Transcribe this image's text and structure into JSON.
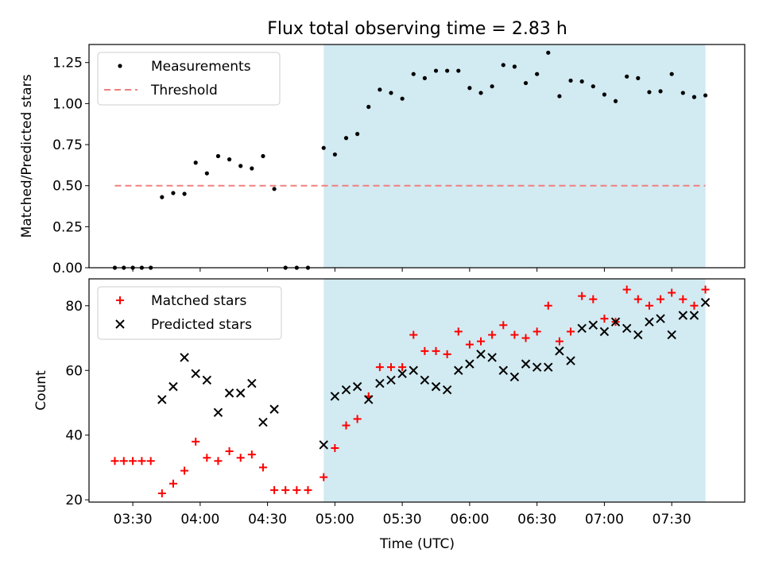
{
  "title": "Flux total observing time = 2.83 h",
  "xlabel": "Time (UTC)",
  "x_ticks": [
    {
      "t": 210,
      "label": "03:30"
    },
    {
      "t": 240,
      "label": "04:00"
    },
    {
      "t": 270,
      "label": "04:30"
    },
    {
      "t": 300,
      "label": "05:00"
    },
    {
      "t": 330,
      "label": "05:30"
    },
    {
      "t": 360,
      "label": "06:00"
    },
    {
      "t": 390,
      "label": "06:30"
    },
    {
      "t": 420,
      "label": "07:00"
    },
    {
      "t": 450,
      "label": "07:30"
    }
  ],
  "colors": {
    "shade": "#add8e6",
    "threshold": "#f08080",
    "measurement": "#000000",
    "matched": "#ff0000",
    "predicted": "#000000"
  },
  "chart_data": [
    {
      "type": "scatter",
      "ylabel": "Matched/Predicted stars",
      "xlim": [
        190.5,
        482.5
      ],
      "ylim": [
        0,
        1.36
      ],
      "yticks": [
        "0.00",
        "0.25",
        "0.50",
        "0.75",
        "1.00",
        "1.25"
      ],
      "shaded_x_range": [
        295,
        465
      ],
      "threshold": {
        "label": "Threshold",
        "y": 0.5,
        "x_range": [
          202,
          465
        ]
      },
      "legend": {
        "location": "upper left"
      },
      "series": [
        {
          "name": "Measurements",
          "marker": "dot",
          "x": [
            202,
            206,
            210,
            214,
            218,
            223,
            228,
            233,
            238,
            243,
            248,
            253,
            258,
            263,
            268,
            273,
            278,
            283,
            288,
            295,
            300,
            305,
            310,
            315,
            320,
            325,
            330,
            335,
            340,
            345,
            350,
            355,
            360,
            365,
            370,
            375,
            380,
            385,
            390,
            395,
            400,
            405,
            410,
            415,
            420,
            425,
            430,
            435,
            440,
            445,
            450,
            455,
            460,
            465
          ],
          "y": [
            0,
            0,
            0,
            0,
            0,
            0.43,
            0.455,
            0.45,
            0.64,
            0.575,
            0.68,
            0.66,
            0.62,
            0.605,
            0.68,
            0.48,
            0,
            0,
            0,
            0.73,
            0.69,
            0.79,
            0.815,
            0.98,
            1.085,
            1.065,
            1.03,
            1.18,
            1.155,
            1.2,
            1.2,
            1.2,
            1.095,
            1.065,
            1.105,
            1.235,
            1.225,
            1.125,
            1.18,
            1.31,
            1.045,
            1.14,
            1.135,
            1.105,
            1.055,
            1.015,
            1.165,
            1.155,
            1.07,
            1.075,
            1.18,
            1.065,
            1.04,
            1.05
          ]
        }
      ]
    },
    {
      "type": "scatter",
      "ylabel": "Count",
      "xlim": [
        190.5,
        482.5
      ],
      "ylim": [
        19.3,
        88.3
      ],
      "yticks": [
        "20",
        "40",
        "60",
        "80"
      ],
      "shaded_x_range": [
        295,
        465
      ],
      "legend": {
        "location": "upper left"
      },
      "series": [
        {
          "name": "Matched stars",
          "marker": "plus",
          "x": [
            202,
            206,
            210,
            214,
            218,
            223,
            228,
            233,
            238,
            243,
            248,
            253,
            258,
            263,
            268,
            273,
            278,
            283,
            288,
            295,
            300,
            305,
            310,
            315,
            320,
            325,
            330,
            335,
            340,
            345,
            350,
            355,
            360,
            365,
            370,
            375,
            380,
            385,
            390,
            395,
            400,
            405,
            410,
            415,
            420,
            425,
            430,
            435,
            440,
            445,
            450,
            455,
            460,
            465
          ],
          "y": [
            32,
            32,
            32,
            32,
            32,
            22,
            25,
            29,
            38,
            33,
            32,
            35,
            33,
            34,
            30,
            23,
            23,
            23,
            23,
            27,
            36,
            43,
            45,
            52,
            61,
            61,
            61,
            71,
            66,
            66,
            65,
            72,
            68,
            69,
            71,
            74,
            71,
            70,
            72,
            80,
            69,
            72,
            83,
            82,
            76,
            75,
            85,
            82,
            80,
            82,
            84,
            82,
            80,
            85
          ]
        },
        {
          "name": "Predicted stars",
          "marker": "x",
          "x": [
            223,
            228,
            233,
            238,
            243,
            248,
            253,
            258,
            263,
            268,
            273,
            295,
            300,
            305,
            310,
            315,
            320,
            325,
            330,
            335,
            340,
            345,
            350,
            355,
            360,
            365,
            370,
            375,
            380,
            385,
            390,
            395,
            400,
            405,
            410,
            415,
            420,
            425,
            430,
            435,
            440,
            445,
            450,
            455,
            460,
            465
          ],
          "y": [
            51,
            55,
            64,
            59,
            57,
            47,
            53,
            53,
            56,
            44,
            48,
            37,
            52,
            54,
            55,
            51,
            56,
            57,
            59,
            60,
            57,
            55,
            54,
            60,
            62,
            65,
            64,
            60,
            58,
            62,
            61,
            61,
            66,
            63,
            73,
            74,
            72,
            75,
            73,
            71,
            75,
            76,
            71,
            77,
            77,
            81
          ]
        }
      ]
    }
  ]
}
